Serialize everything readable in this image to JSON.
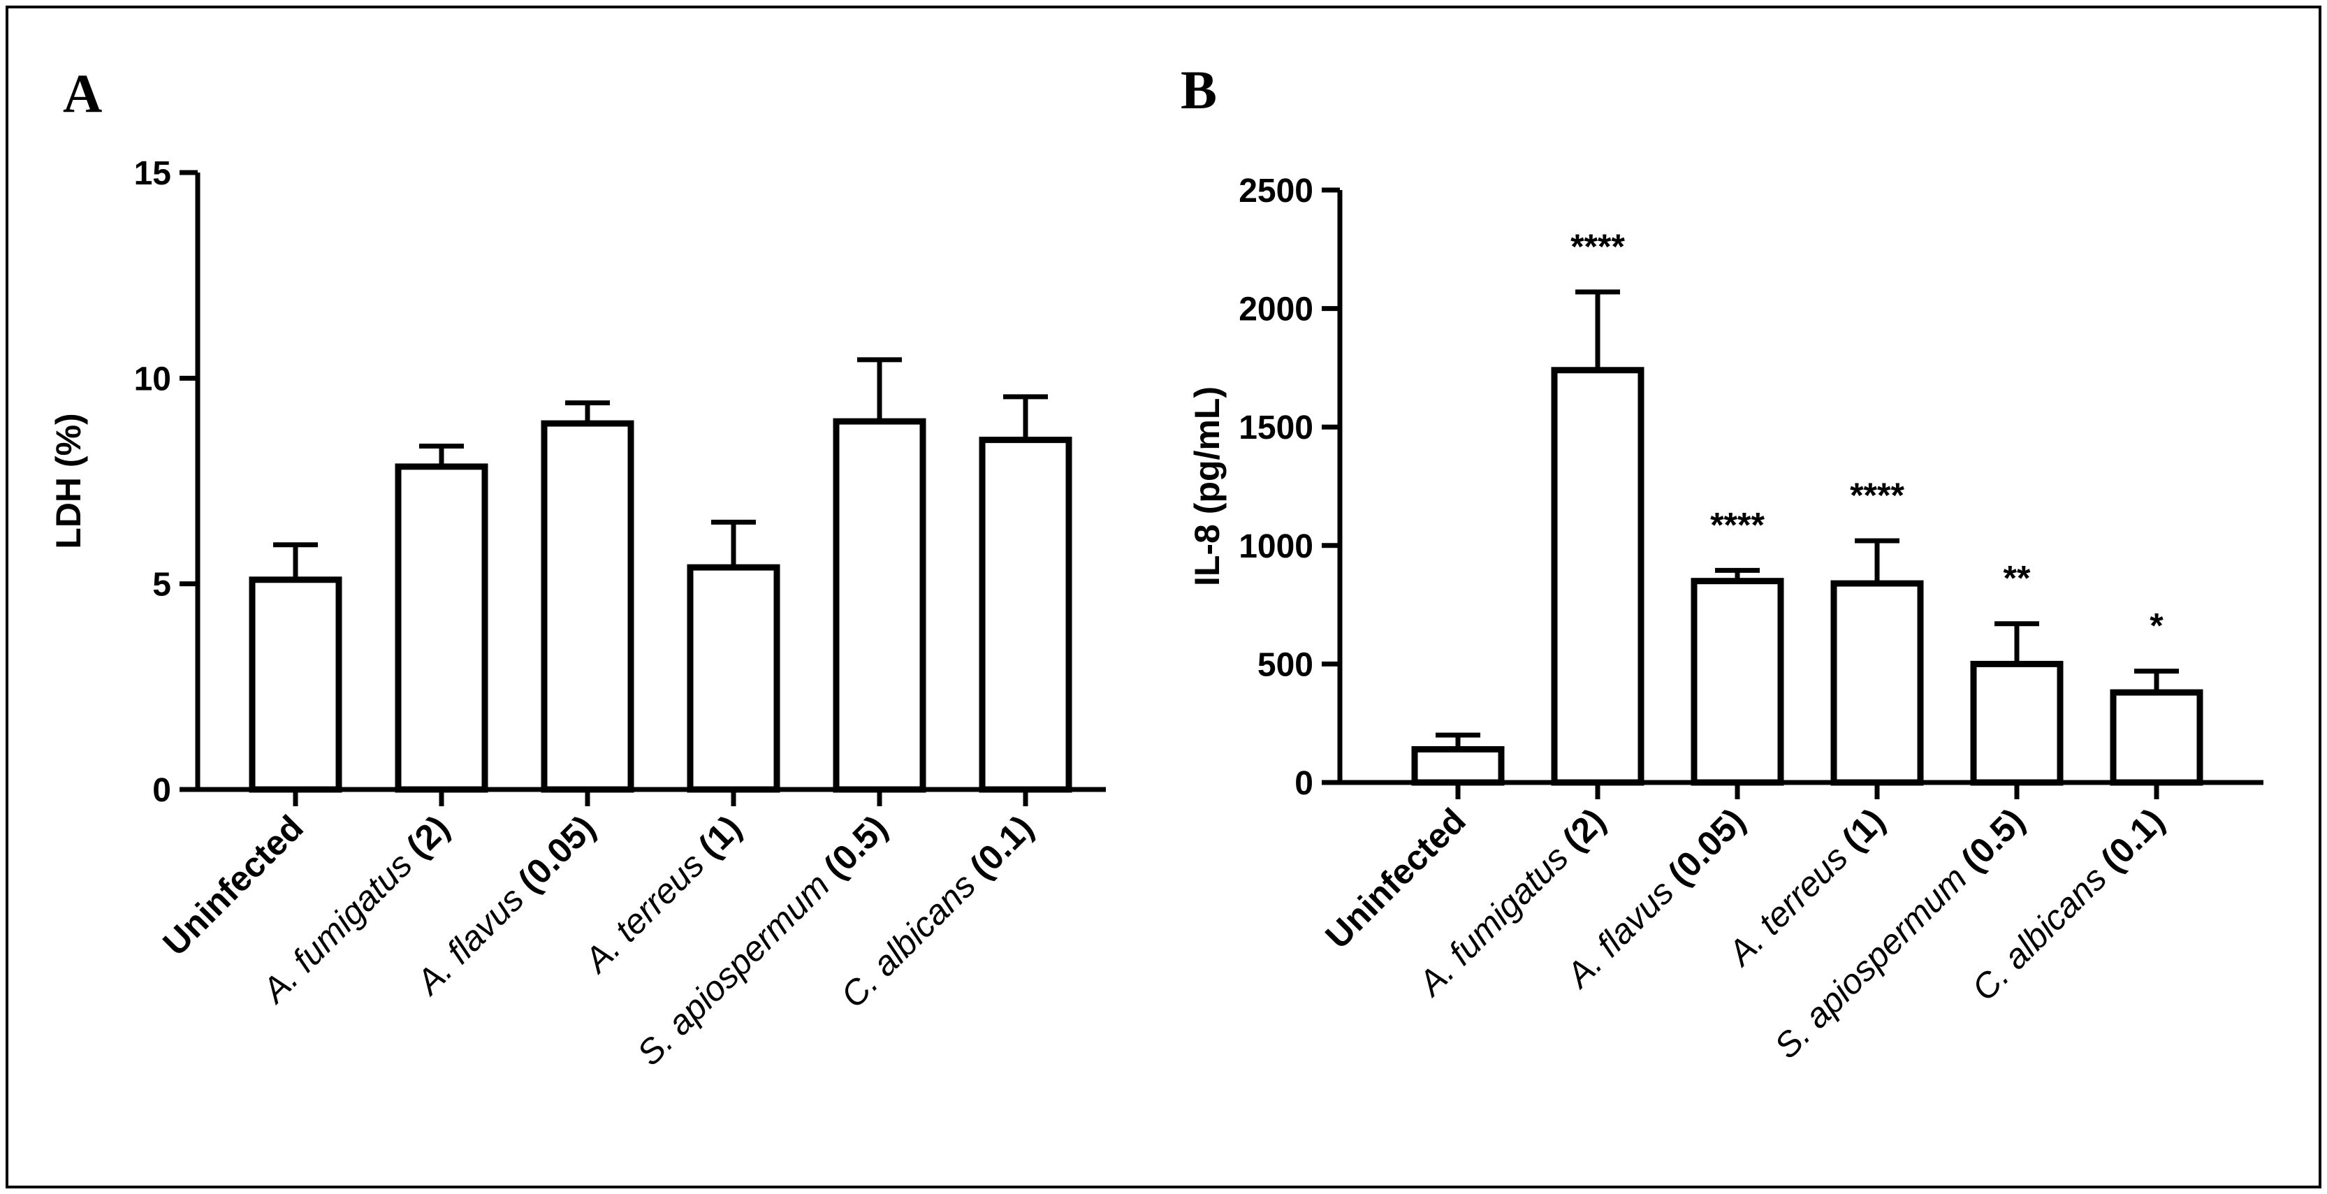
{
  "chart_data": [
    {
      "panel": "A",
      "type": "bar",
      "ylabel": "LDH (%)",
      "xlabel": "",
      "ylim": [
        0,
        15
      ],
      "yticks": [
        0,
        5,
        10,
        15
      ],
      "categories": [
        [
          {
            "text": "Uninfected",
            "style": "b"
          }
        ],
        [
          {
            "text": "A. fumigatus",
            "style": "i"
          },
          {
            "text": " (2)",
            "style": "b"
          }
        ],
        [
          {
            "text": "A. flavus",
            "style": "i"
          },
          {
            "text": " (0.05)",
            "style": "b"
          }
        ],
        [
          {
            "text": "A. terreus",
            "style": "i"
          },
          {
            "text": " (1)",
            "style": "b"
          }
        ],
        [
          {
            "text": "S. apiospermum",
            "style": "i"
          },
          {
            "text": " (0.5)",
            "style": "b"
          }
        ],
        [
          {
            "text": "C. albicans",
            "style": "i"
          },
          {
            "text": " (0.1)",
            "style": "b"
          }
        ]
      ],
      "values": [
        5.1,
        7.85,
        8.9,
        5.4,
        8.95,
        8.5
      ],
      "errors": [
        0.85,
        0.5,
        0.5,
        1.1,
        1.5,
        1.05
      ],
      "annotations": [
        "",
        "",
        "",
        "",
        "",
        ""
      ]
    },
    {
      "panel": "B",
      "type": "bar",
      "ylabel": "IL-8 (pg/mL)",
      "xlabel": "",
      "ylim": [
        0,
        2500
      ],
      "yticks": [
        0,
        500,
        1000,
        1500,
        2000,
        2500
      ],
      "categories": [
        [
          {
            "text": "Uninfected",
            "style": "b"
          }
        ],
        [
          {
            "text": "A. fumigatus",
            "style": "i"
          },
          {
            "text": " (2)",
            "style": "b"
          }
        ],
        [
          {
            "text": "A. flavus",
            "style": "i"
          },
          {
            "text": " (0.05)",
            "style": "b"
          }
        ],
        [
          {
            "text": "A. terreus",
            "style": "i"
          },
          {
            "text": " (1)",
            "style": "b"
          }
        ],
        [
          {
            "text": "S. apiospermum",
            "style": "i"
          },
          {
            "text": " (0.5)",
            "style": "b"
          }
        ],
        [
          {
            "text": "C. albicans",
            "style": "i"
          },
          {
            "text": " (0.1)",
            "style": "b"
          }
        ]
      ],
      "values": [
        140,
        1740,
        850,
        840,
        500,
        380
      ],
      "errors": [
        60,
        330,
        45,
        180,
        170,
        90
      ],
      "annotations": [
        "",
        "****",
        "****",
        "****",
        "**",
        "*"
      ]
    }
  ]
}
